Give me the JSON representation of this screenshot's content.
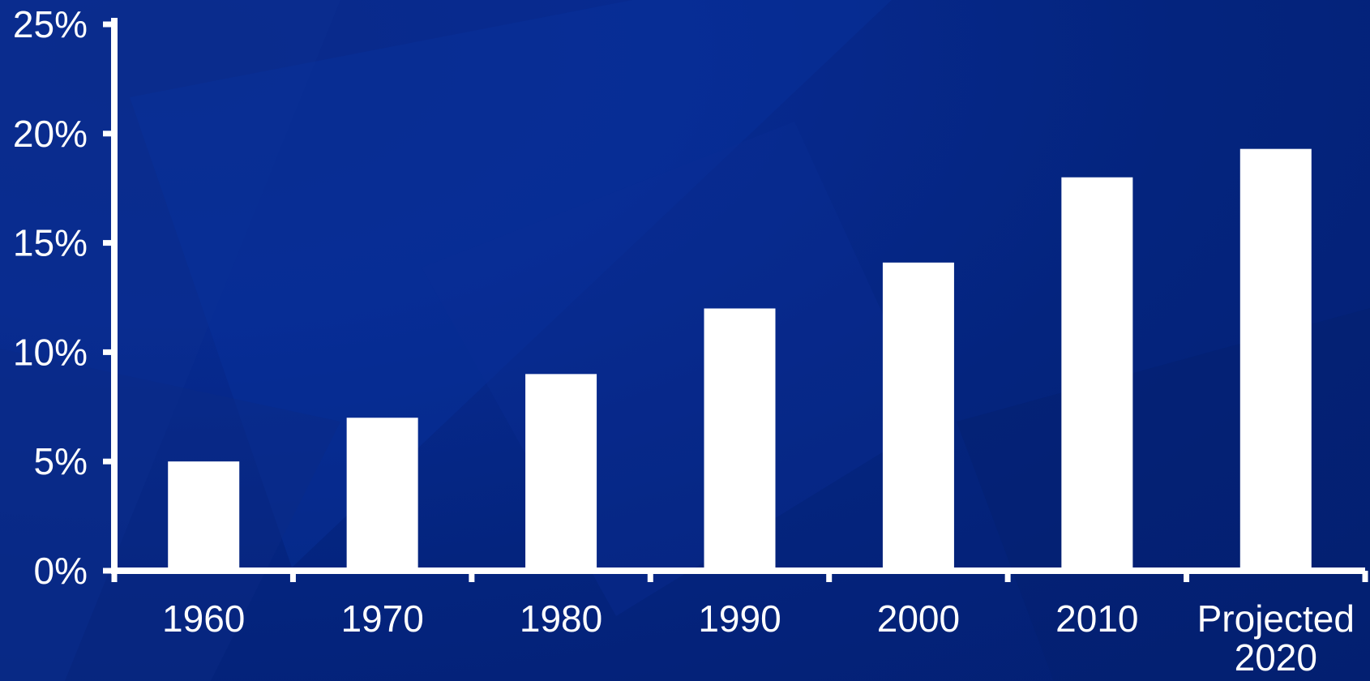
{
  "chart_data": {
    "type": "bar",
    "categories": [
      "1960",
      "1970",
      "1980",
      "1990",
      "2000",
      "2010",
      "Projected 2020"
    ],
    "category_lines": [
      [
        "1960"
      ],
      [
        "1970"
      ],
      [
        "1980"
      ],
      [
        "1990"
      ],
      [
        "2000"
      ],
      [
        "2010"
      ],
      [
        "Projected",
        "2020"
      ]
    ],
    "values": [
      5,
      7,
      9,
      12,
      14.1,
      18,
      19.3
    ],
    "ylim": [
      0,
      25
    ],
    "yticks": [
      0,
      5,
      10,
      15,
      20,
      25
    ],
    "ytick_labels": [
      "0%",
      "5%",
      "10%",
      "15%",
      "20%",
      "25%"
    ],
    "title": "",
    "xlabel": "",
    "ylabel": "",
    "grid": false,
    "colors": {
      "bar": "#ffffff",
      "axis": "#ffffff",
      "text": "#ffffff",
      "background": "#04247e"
    }
  }
}
